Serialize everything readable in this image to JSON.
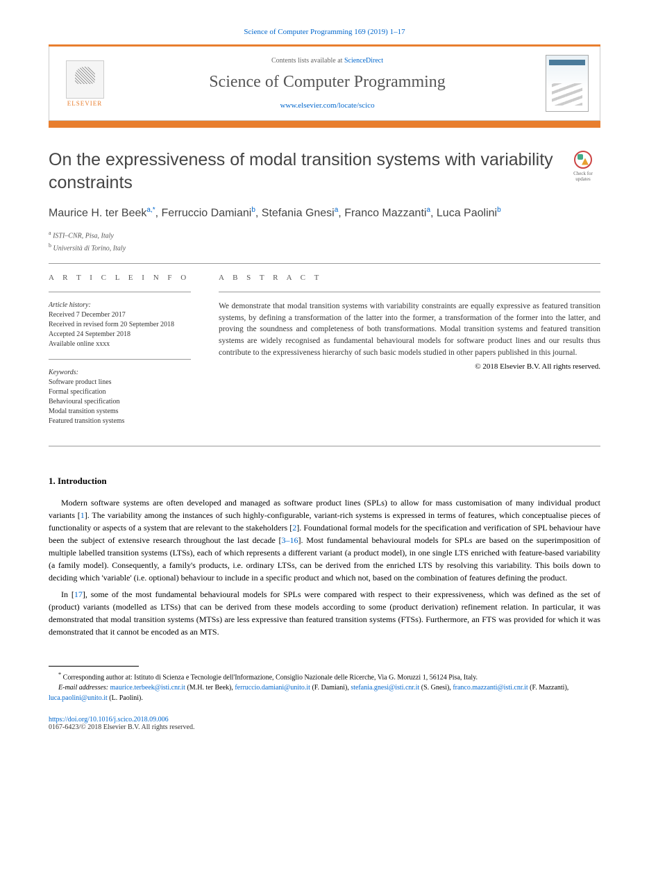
{
  "citation": "Science of Computer Programming 169 (2019) 1–17",
  "header": {
    "contents_prefix": "Contents lists available at ",
    "contents_link": "ScienceDirect",
    "journal_name": "Science of Computer Programming",
    "journal_url": "www.elsevier.com/locate/scico",
    "publisher": "ELSEVIER"
  },
  "title": "On the expressiveness of modal transition systems with variability constraints",
  "check_updates_label": "Check for updates",
  "authors_html": "Maurice H. ter Beek",
  "authors": {
    "list": "Maurice H. ter Beek a,*, Ferruccio Damiani b, Stefania Gnesi a, Franco Mazzanti a, Luca Paolini b",
    "a1_name": "Maurice H. ter Beek",
    "a1_sup": "a,*",
    "a2_name": "Ferruccio Damiani",
    "a2_sup": "b",
    "a3_name": "Stefania Gnesi",
    "a3_sup": "a",
    "a4_name": "Franco Mazzanti",
    "a4_sup": "a",
    "a5_name": "Luca Paolini",
    "a5_sup": "b"
  },
  "affiliations": {
    "a_sup": "a",
    "a_text": "ISTI–CNR, Pisa, Italy",
    "b_sup": "b",
    "b_text": "Università di Torino, Italy"
  },
  "info": {
    "label": "A R T I C L E   I N F O",
    "history_label": "Article history:",
    "received": "Received 7 December 2017",
    "revised": "Received in revised form 20 September 2018",
    "accepted": "Accepted 24 September 2018",
    "online": "Available online xxxx",
    "keywords_label": "Keywords:",
    "kw1": "Software product lines",
    "kw2": "Formal specification",
    "kw3": "Behavioural specification",
    "kw4": "Modal transition systems",
    "kw5": "Featured transition systems"
  },
  "abstract": {
    "label": "A B S T R A C T",
    "text": "We demonstrate that modal transition systems with variability constraints are equally expressive as featured transition systems, by defining a transformation of the latter into the former, a transformation of the former into the latter, and proving the soundness and completeness of both transformations. Modal transition systems and featured transition systems are widely recognised as fundamental behavioural models for software product lines and our results thus contribute to the expressiveness hierarchy of such basic models studied in other papers published in this journal.",
    "copyright": "© 2018 Elsevier B.V. All rights reserved."
  },
  "section1": {
    "heading": "1. Introduction",
    "p1_a": "Modern software systems are often developed and managed as software product lines (SPLs) to allow for mass customisation of many individual product variants [",
    "p1_ref1": "1",
    "p1_b": "]. The variability among the instances of such highly-configurable, variant-rich systems is expressed in terms of features, which conceptualise pieces of functionality or aspects of a system that are relevant to the stakeholders [",
    "p1_ref2": "2",
    "p1_c": "]. Foundational formal models for the specification and verification of SPL behaviour have been the subject of extensive research throughout the last decade [",
    "p1_ref3": "3–16",
    "p1_d": "]. Most fundamental behavioural models for SPLs are based on the superimposition of multiple labelled transition systems (LTSs), each of which represents a different variant (a product model), in one single LTS enriched with feature-based variability (a family model). Consequently, a family's products, i.e. ordinary LTSs, can be derived from the enriched LTS by resolving this variability. This boils down to deciding which 'variable' (i.e. optional) behaviour to include in a specific product and which not, based on the combination of features defining the product.",
    "p2_a": "In [",
    "p2_ref1": "17",
    "p2_b": "], some of the most fundamental behavioural models for SPLs were compared with respect to their expressiveness, which was defined as the set of (product) variants (modelled as LTSs) that can be derived from these models according to some (product derivation) refinement relation. In particular, it was demonstrated that modal transition systems (MTSs) are less expressive than featured transition systems (FTSs). Furthermore, an FTS was provided for which it was demonstrated that it cannot be encoded as an MTS."
  },
  "footnote": {
    "star": "*",
    "corr_label": "Corresponding author at: Istituto di Scienza e Tecnologie dell'Informazione, Consiglio Nazionale delle Ricerche, Via G. Moruzzi 1, 56124 Pisa, Italy.",
    "email_label": "E-mail addresses:",
    "e1": "maurice.terbeek@isti.cnr.it",
    "e1_who": " (M.H. ter Beek), ",
    "e2": "ferruccio.damiani@unito.it",
    "e2_who": " (F. Damiani), ",
    "e3": "stefania.gnesi@isti.cnr.it",
    "e3_who": " (S. Gnesi), ",
    "e4": "franco.mazzanti@isti.cnr.it",
    "e4_who": " (F. Mazzanti), ",
    "e5": "luca.paolini@unito.it",
    "e5_who": " (L. Paolini)."
  },
  "doi": "https://doi.org/10.1016/j.scico.2018.09.006",
  "issn": "0167-6423/© 2018 Elsevier B.V. All rights reserved."
}
